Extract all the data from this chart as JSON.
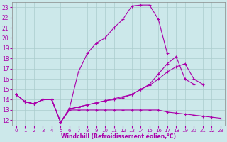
{
  "xlabel": "Windchill (Refroidissement éolien,°C)",
  "bg_color": "#cce8ea",
  "line_color": "#aa00aa",
  "grid_color": "#aacccc",
  "ylim": [
    11.5,
    23.5
  ],
  "xlim": [
    -0.5,
    23.5
  ],
  "yticks": [
    12,
    13,
    14,
    15,
    16,
    17,
    18,
    19,
    20,
    21,
    22,
    23
  ],
  "xticks": [
    0,
    1,
    2,
    3,
    4,
    5,
    6,
    7,
    8,
    9,
    10,
    11,
    12,
    13,
    14,
    15,
    16,
    17,
    18,
    19,
    20,
    21,
    22,
    23
  ],
  "line1_x": [
    0,
    1,
    2,
    3,
    4,
    5,
    6,
    7,
    8,
    9,
    10,
    11,
    12,
    13,
    14,
    15,
    16,
    17
  ],
  "line1_y": [
    14.5,
    13.8,
    13.6,
    14.0,
    14.0,
    11.8,
    13.2,
    16.7,
    18.5,
    19.5,
    20.0,
    21.0,
    21.8,
    23.1,
    23.2,
    23.2,
    21.8,
    18.5
  ],
  "line2_x": [
    0,
    1,
    2,
    3,
    4,
    5,
    6,
    7,
    8,
    9,
    10,
    11,
    12,
    13,
    14,
    15,
    16,
    17,
    18,
    19,
    20,
    21,
    22,
    23
  ],
  "line2_y": [
    14.5,
    13.8,
    13.6,
    14.0,
    14.0,
    11.8,
    13.1,
    13.3,
    13.5,
    13.7,
    13.9,
    14.1,
    14.3,
    14.5,
    15.0,
    15.5,
    16.5,
    17.5,
    18.2,
    16.0,
    15.5,
    null,
    null,
    null
  ],
  "line3_x": [
    0,
    1,
    2,
    3,
    4,
    5,
    6,
    7,
    8,
    9,
    10,
    11,
    12,
    13,
    14,
    15,
    16,
    17,
    18,
    19,
    20,
    21,
    22,
    23
  ],
  "line3_y": [
    14.5,
    13.8,
    13.6,
    14.0,
    14.0,
    11.8,
    13.1,
    13.3,
    13.5,
    13.7,
    13.9,
    14.0,
    14.2,
    14.5,
    15.0,
    15.4,
    16.0,
    16.7,
    17.2,
    17.5,
    16.0,
    15.5,
    null,
    null
  ],
  "line4_x": [
    1,
    2,
    3,
    4,
    5,
    6,
    7,
    8,
    9,
    10,
    11,
    12,
    13,
    14,
    15,
    16,
    17,
    18,
    19,
    20,
    21,
    22,
    23
  ],
  "line4_y": [
    13.8,
    13.6,
    14.0,
    14.0,
    11.8,
    13.0,
    13.0,
    13.0,
    13.0,
    13.0,
    13.0,
    13.0,
    13.0,
    13.0,
    13.0,
    13.0,
    12.8,
    12.7,
    12.6,
    12.5,
    12.4,
    12.3,
    12.2
  ]
}
